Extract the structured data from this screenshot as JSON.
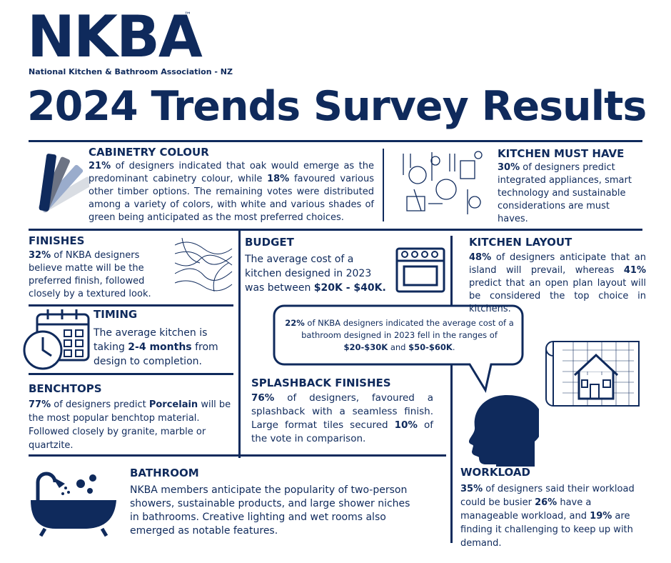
{
  "logo": {
    "mark": "NKBA",
    "trademark": "™",
    "subtitle": "National Kitchen & Bathroom Association - NZ"
  },
  "title": "2024 Trends Survey Results",
  "sections": {
    "cabinetry": {
      "heading": "CABINETRY COLOUR",
      "body": [
        {
          "text": "21%",
          "bold": true
        },
        {
          "text": " of designers indicated that oak would emerge as the predominant cabinetry colour, while "
        },
        {
          "text": "18%",
          "bold": true
        },
        {
          "text": " favoured various other timber options. The remaining votes were distributed among a variety of colors, with white and various shades of green being anticipated as the most preferred choices."
        }
      ]
    },
    "kitchen_must_have": {
      "heading": "KITCHEN MUST HAVE",
      "body": [
        {
          "text": "30%",
          "bold": true
        },
        {
          "text": " of designers predict integrated appliances, smart technology and sustainable considerations are must haves."
        }
      ]
    },
    "finishes": {
      "heading": "FINISHES",
      "body": [
        {
          "text": "32%",
          "bold": true
        },
        {
          "text": " of NKBA designers believe matte will be the preferred finish, followed closely by a textured look."
        }
      ]
    },
    "budget": {
      "heading": "BUDGET",
      "body": [
        {
          "text": "The average cost of a kitchen designed in 2023  was between "
        },
        {
          "text": "$20K - $40K.",
          "bold": true
        }
      ]
    },
    "kitchen_layout": {
      "heading": "KITCHEN LAYOUT",
      "body": [
        {
          "text": "48%",
          "bold": true
        },
        {
          "text": " of designers anticipate that an island will prevail, whereas "
        },
        {
          "text": "41%",
          "bold": true
        },
        {
          "text": " predict that an open plan layout will be considered the top choice in kitchens."
        }
      ]
    },
    "timing": {
      "heading": "TIMING",
      "body": [
        {
          "text": "The average kitchen is taking "
        },
        {
          "text": "2-4 months",
          "bold": true
        },
        {
          "text": " from design to completion."
        }
      ]
    },
    "bathroom_cost": {
      "body": [
        {
          "text": "22%",
          "bold": true
        },
        {
          "text": " of NKBA designers indicated the average cost of a bathroom designed in 2023 fell in the ranges of "
        },
        {
          "text": "$20-$30K",
          "bold": true
        },
        {
          "text": " and "
        },
        {
          "text": "$50-$60K",
          "bold": true
        },
        {
          "text": "."
        }
      ]
    },
    "benchtops": {
      "heading": "BENCHTOPS",
      "body": [
        {
          "text": "77%",
          "bold": true
        },
        {
          "text": " of designers predict "
        },
        {
          "text": "Porcelain",
          "bold": true
        },
        {
          "text": " will be the most popular benchtop material. Followed closely by granite, marble or quartzite."
        }
      ]
    },
    "splashback": {
      "heading": "SPLASHBACK FINISHES",
      "body": [
        {
          "text": "76%",
          "bold": true
        },
        {
          "text": " of designers, favoured a splashback with a seamless finish. Large format tiles secured "
        },
        {
          "text": "10%",
          "bold": true
        },
        {
          "text": " of the vote in comparison."
        }
      ]
    },
    "bathroom": {
      "heading": "BATHROOM",
      "body": [
        {
          "text": "NKBA members anticipate the popularity of two-person showers, sustainable products, and large shower niches in bathrooms. Creative lighting and wet rooms also emerged as notable features."
        }
      ]
    },
    "workload": {
      "heading": "WORKLOAD",
      "body": [
        {
          "text": "35%",
          "bold": true
        },
        {
          "text": " of designers said their workload could be busier "
        },
        {
          "text": "26%",
          "bold": true
        },
        {
          "text": " have a manageable workload, and "
        },
        {
          "text": "19%",
          "bold": true
        },
        {
          "text": " are finding it challenging to keep up with demand."
        }
      ]
    }
  }
}
